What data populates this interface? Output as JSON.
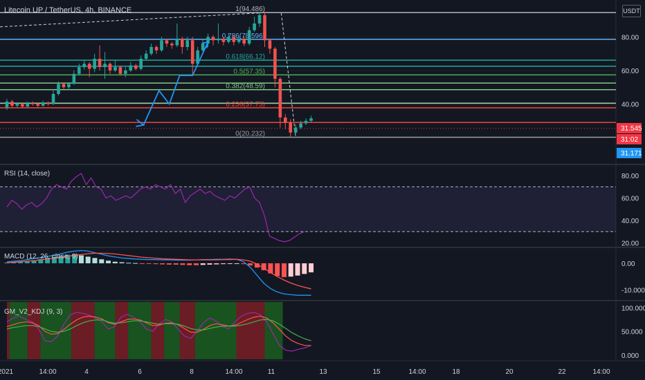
{
  "header": {
    "title": "Litecoin UP / TetherUS, 4h, BINANCE",
    "currency": "USDT"
  },
  "colors": {
    "background": "#131722",
    "up_candle": "#26a69a",
    "down_candle": "#ef5350",
    "projection": "#2196f3",
    "rsi_line": "#9c27b0",
    "macd_line": "#2196f3",
    "signal_line": "#ff5252"
  },
  "chart_data": [
    {
      "type": "candlestick",
      "title": "Litecoin UP / TetherUS, 4h, BINANCE",
      "y_axis": {
        "ticks": [
          40,
          60,
          80
        ],
        "tick_labels": [
          "40.00",
          "60.00",
          "80.00"
        ],
        "ylim": [
          4.0,
          102.0
        ]
      },
      "x_axis": {
        "tick_labels": [
          "2021",
          "14:00",
          "4",
          "6",
          "8",
          "14:00",
          "11",
          "13",
          "15",
          "14:00",
          "18",
          "20",
          "22",
          "14:00"
        ]
      },
      "candles": [
        {
          "o": 38.0,
          "c": 41.5,
          "h": 43.0,
          "l": 36.5
        },
        {
          "o": 41.5,
          "c": 39.0,
          "h": 42.5,
          "l": 38.0
        },
        {
          "o": 39.0,
          "c": 40.0,
          "h": 41.0,
          "l": 38.0
        },
        {
          "o": 40.0,
          "c": 38.5,
          "h": 41.0,
          "l": 37.5
        },
        {
          "o": 38.5,
          "c": 40.5,
          "h": 41.5,
          "l": 38.0
        },
        {
          "o": 40.5,
          "c": 40.0,
          "h": 41.5,
          "l": 39.0
        },
        {
          "o": 40.0,
          "c": 39.0,
          "h": 41.0,
          "l": 38.0
        },
        {
          "o": 39.0,
          "c": 41.0,
          "h": 42.0,
          "l": 38.5
        },
        {
          "o": 41.0,
          "c": 40.0,
          "h": 41.5,
          "l": 39.0
        },
        {
          "o": 40.0,
          "c": 46.0,
          "h": 48.0,
          "l": 39.5
        },
        {
          "o": 46.0,
          "c": 52.0,
          "h": 53.5,
          "l": 45.0
        },
        {
          "o": 52.0,
          "c": 50.0,
          "h": 53.0,
          "l": 49.0
        },
        {
          "o": 50.0,
          "c": 52.0,
          "h": 53.0,
          "l": 48.5
        },
        {
          "o": 52.0,
          "c": 58.0,
          "h": 60.0,
          "l": 51.5
        },
        {
          "o": 58.0,
          "c": 62.0,
          "h": 64.0,
          "l": 57.0
        },
        {
          "o": 62.0,
          "c": 64.0,
          "h": 66.0,
          "l": 60.5
        },
        {
          "o": 64.0,
          "c": 61.0,
          "h": 65.0,
          "l": 56.0
        },
        {
          "o": 61.0,
          "c": 67.0,
          "h": 70.0,
          "l": 59.0
        },
        {
          "o": 67.0,
          "c": 62.0,
          "h": 75.0,
          "l": 60.0
        },
        {
          "o": 62.0,
          "c": 64.0,
          "h": 71.0,
          "l": 55.0
        },
        {
          "o": 64.0,
          "c": 60.0,
          "h": 65.0,
          "l": 58.0
        },
        {
          "o": 60.0,
          "c": 62.0,
          "h": 66.0,
          "l": 59.0
        },
        {
          "o": 62.0,
          "c": 58.0,
          "h": 63.0,
          "l": 57.0
        },
        {
          "o": 58.0,
          "c": 60.0,
          "h": 62.0,
          "l": 56.0
        },
        {
          "o": 60.0,
          "c": 63.0,
          "h": 65.0,
          "l": 59.0
        },
        {
          "o": 63.0,
          "c": 61.0,
          "h": 64.0,
          "l": 60.0
        },
        {
          "o": 61.0,
          "c": 67.0,
          "h": 69.0,
          "l": 60.0
        },
        {
          "o": 67.0,
          "c": 70.0,
          "h": 72.0,
          "l": 66.0
        },
        {
          "o": 70.0,
          "c": 74.0,
          "h": 76.0,
          "l": 69.0
        },
        {
          "o": 74.0,
          "c": 72.0,
          "h": 75.0,
          "l": 70.0
        },
        {
          "o": 72.0,
          "c": 78.0,
          "h": 80.0,
          "l": 71.0
        },
        {
          "o": 78.0,
          "c": 76.0,
          "h": 79.0,
          "l": 74.0
        },
        {
          "o": 76.0,
          "c": 75.0,
          "h": 77.0,
          "l": 73.0
        },
        {
          "o": 75.0,
          "c": 79.0,
          "h": 88.0,
          "l": 74.0
        },
        {
          "o": 79.0,
          "c": 74.0,
          "h": 80.0,
          "l": 70.0
        },
        {
          "o": 74.0,
          "c": 78.0,
          "h": 80.0,
          "l": 72.0
        },
        {
          "o": 78.0,
          "c": 64.0,
          "h": 80.0,
          "l": 57.0
        },
        {
          "o": 64.0,
          "c": 72.0,
          "h": 74.0,
          "l": 63.0
        },
        {
          "o": 72.0,
          "c": 76.0,
          "h": 79.0,
          "l": 71.0
        },
        {
          "o": 76.0,
          "c": 80.0,
          "h": 82.0,
          "l": 74.0
        },
        {
          "o": 80.0,
          "c": 78.0,
          "h": 81.0,
          "l": 75.0
        },
        {
          "o": 78.0,
          "c": 79.0,
          "h": 88.0,
          "l": 76.0
        },
        {
          "o": 79.0,
          "c": 77.0,
          "h": 80.0,
          "l": 75.0
        },
        {
          "o": 77.0,
          "c": 80.0,
          "h": 82.0,
          "l": 76.0
        },
        {
          "o": 80.0,
          "c": 77.0,
          "h": 81.0,
          "l": 75.0
        },
        {
          "o": 77.0,
          "c": 79.0,
          "h": 80.0,
          "l": 76.0
        },
        {
          "o": 79.0,
          "c": 76.0,
          "h": 80.0,
          "l": 74.5
        },
        {
          "o": 76.0,
          "c": 84.0,
          "h": 86.0,
          "l": 75.0
        },
        {
          "o": 84.0,
          "c": 88.0,
          "h": 92.0,
          "l": 83.0
        },
        {
          "o": 88.0,
          "c": 93.0,
          "h": 94.5,
          "l": 86.0
        },
        {
          "o": 93.0,
          "c": 78.0,
          "h": 94.5,
          "l": 74.0
        },
        {
          "o": 78.0,
          "c": 73.0,
          "h": 79.0,
          "l": 70.0
        },
        {
          "o": 73.0,
          "c": 55.0,
          "h": 74.0,
          "l": 50.0
        },
        {
          "o": 55.0,
          "c": 32.0,
          "h": 56.0,
          "l": 26.0
        },
        {
          "o": 32.0,
          "c": 29.0,
          "h": 34.0,
          "l": 25.0
        },
        {
          "o": 29.0,
          "c": 23.0,
          "h": 31.0,
          "l": 20.2
        },
        {
          "o": 23.0,
          "c": 26.0,
          "h": 28.0,
          "l": 22.0
        },
        {
          "o": 26.0,
          "c": 28.5,
          "h": 30.0,
          "l": 25.0
        },
        {
          "o": 28.5,
          "c": 30.0,
          "h": 31.5,
          "l": 27.5
        },
        {
          "o": 30.0,
          "c": 31.5,
          "h": 33.0,
          "l": 29.0
        }
      ],
      "fib_levels": [
        {
          "ratio": "1",
          "value": 94.486,
          "label": "1(94.486)",
          "color": "#b2b5be"
        },
        {
          "ratio": "0.786",
          "value": 78.596,
          "label": "0.786(78.596)",
          "color": "#64b5f6"
        },
        {
          "ratio": "0.618",
          "value": 66.12,
          "label": "0.618(66.12)",
          "color": "#26a69a"
        },
        {
          "ratio": "0.5",
          "value": 57.35,
          "label": "0.5(57.35)",
          "color": "#4caf50"
        },
        {
          "ratio": "0.382",
          "value": 48.59,
          "label": "0.382(48.59)",
          "color": "#81c784"
        },
        {
          "ratio": "0.236",
          "value": 37.75,
          "label": "0.236(37.75)",
          "color": "#f44336"
        },
        {
          "ratio": "0",
          "value": 20.232,
          "label": "0(20.232)",
          "color": "#9e9e9e"
        }
      ],
      "extra_lines": [
        {
          "value": 62.5,
          "color": "#26a69a"
        },
        {
          "value": 52.5,
          "color": "#81c784"
        },
        {
          "value": 40.5,
          "color": "#a5d6a7"
        },
        {
          "value": 29.0,
          "color": "#f44336"
        }
      ],
      "projection_path": {
        "points": [
          [
            26.5,
            27.5
          ],
          [
            29.5,
            48.0
          ],
          [
            31.5,
            40.0
          ],
          [
            33.5,
            57.0
          ],
          [
            36.0,
            57.0
          ],
          [
            39.0,
            77.0
          ]
        ]
      },
      "price_labels": [
        {
          "value": "31.545",
          "color": "#f23645"
        },
        {
          "value": "31:02",
          "color": "#f23645"
        },
        {
          "value": "31.171",
          "color": "#2196f3"
        }
      ]
    },
    {
      "type": "line",
      "title": "RSI (14, close)",
      "ylim": [
        16,
        90
      ],
      "y_ticks": [
        "80.00",
        "60.00",
        "40.00",
        "20.00"
      ],
      "y_tick_values": [
        80,
        60,
        40,
        20
      ],
      "bands": [
        70,
        30
      ],
      "series": [
        {
          "values": [
            52,
            58,
            55,
            50,
            54,
            56,
            52,
            55,
            60,
            68,
            72,
            70,
            68,
            75,
            79,
            82,
            72,
            78,
            70,
            68,
            60,
            62,
            58,
            60,
            62,
            60,
            64,
            68,
            70,
            68,
            72,
            70,
            68,
            72,
            64,
            68,
            56,
            62,
            65,
            68,
            64,
            66,
            62,
            60,
            58,
            62,
            60,
            64,
            68,
            70,
            60,
            56,
            44,
            26,
            24,
            22,
            21,
            22,
            25,
            28,
            30
          ]
        }
      ]
    },
    {
      "type": "bar",
      "title": "MACD (12, 26, close, 9)",
      "ylim": [
        -14,
        6
      ],
      "y_ticks": [
        "0.00",
        "-10.000"
      ],
      "y_tick_values": [
        0,
        -10
      ],
      "histogram": [
        0.3,
        0.5,
        0.6,
        0.8,
        1.2,
        1.6,
        2.0,
        2.4,
        2.8,
        3.2,
        3.4,
        3.0,
        2.5,
        2.0,
        1.5,
        1.0,
        0.6,
        0.4,
        0.2,
        0.1,
        -0.1,
        -0.2,
        -0.3,
        -0.4,
        -0.5,
        -0.5,
        -0.6,
        -0.7,
        -0.7,
        -0.6,
        -0.5,
        -0.4,
        -0.3,
        -0.2,
        -0.1,
        -0.3,
        -0.8,
        -1.6,
        -2.6,
        -3.8,
        -4.8,
        -5.2,
        -5.0,
        -4.6,
        -4.0,
        -3.4
      ],
      "series": [
        {
          "values": [
            0.5,
            0.8,
            1.0,
            1.4,
            1.8,
            2.2,
            2.6,
            3.0,
            3.6,
            4.2,
            4.6,
            4.8,
            4.6,
            4.0,
            3.4,
            2.8,
            2.4,
            2.0,
            1.8,
            1.6,
            1.5,
            1.4,
            1.4,
            1.3,
            1.3,
            1.2,
            1.2,
            1.2,
            1.3,
            1.4,
            1.4,
            1.5,
            1.5,
            1.6,
            1.5,
            0.6,
            -1.5,
            -4.5,
            -7.5,
            -9.5,
            -10.8,
            -11.5,
            -11.8,
            -12.0,
            -12.0,
            -12.0
          ]
        },
        {
          "values": [
            0.2,
            0.4,
            0.6,
            0.8,
            1.0,
            1.3,
            1.6,
            1.9,
            2.2,
            2.6,
            3.0,
            3.3,
            3.6,
            3.8,
            3.8,
            3.7,
            3.5,
            3.2,
            2.9,
            2.6,
            2.3,
            2.1,
            1.9,
            1.7,
            1.6,
            1.5,
            1.4,
            1.3,
            1.3,
            1.3,
            1.3,
            1.3,
            1.4,
            1.4,
            1.5,
            1.3,
            0.8,
            -0.3,
            -1.8,
            -3.5,
            -5.0,
            -6.3,
            -7.4,
            -8.3,
            -9.0,
            -9.6
          ]
        }
      ]
    },
    {
      "type": "line",
      "title": "GM_V2_KDJ (9, 3)",
      "ylim": [
        -12,
        115
      ],
      "y_ticks": [
        "100.000",
        "50.000",
        "0.000"
      ],
      "y_tick_values": [
        100,
        50,
        0
      ],
      "regions": [
        "red",
        "green",
        "red",
        "green",
        "red",
        "green",
        "red",
        "green",
        "red",
        "green",
        "red",
        "green",
        "red",
        "green"
      ],
      "region_bounds": [
        0,
        0.5,
        4.0,
        6.5,
        12.5,
        17.0,
        21.0,
        23.5,
        28.0,
        30.5,
        33.5,
        36.5,
        44.5,
        50.0,
        53.5
      ],
      "series": [
        {
          "values": [
            70,
            78,
            82,
            75,
            70,
            55,
            30,
            28,
            40,
            65,
            85,
            90,
            88,
            84,
            78,
            70,
            55,
            60,
            80,
            86,
            80,
            70,
            55,
            50,
            65,
            75,
            70,
            55,
            40,
            35,
            50,
            68,
            78,
            72,
            60,
            55,
            70,
            82,
            88,
            90,
            85,
            70,
            45,
            20,
            10,
            8,
            12,
            15,
            20
          ]
        },
        {
          "values": [
            60,
            64,
            68,
            70,
            68,
            62,
            50,
            44,
            45,
            54,
            65,
            74,
            80,
            82,
            80,
            76,
            68,
            65,
            70,
            75,
            76,
            74,
            68,
            62,
            63,
            67,
            68,
            64,
            56,
            48,
            48,
            54,
            62,
            66,
            64,
            61,
            63,
            69,
            75,
            80,
            82,
            78,
            68,
            54,
            40,
            30,
            24,
            20,
            20
          ]
        },
        {
          "values": [
            55,
            58,
            60,
            62,
            62,
            60,
            55,
            50,
            48,
            50,
            55,
            62,
            68,
            72,
            74,
            74,
            70,
            67,
            68,
            70,
            72,
            72,
            70,
            67,
            65,
            66,
            66,
            65,
            61,
            56,
            53,
            53,
            56,
            59,
            61,
            61,
            61,
            63,
            66,
            70,
            74,
            75,
            72,
            65,
            56,
            47,
            40,
            34,
            30
          ]
        }
      ]
    }
  ]
}
